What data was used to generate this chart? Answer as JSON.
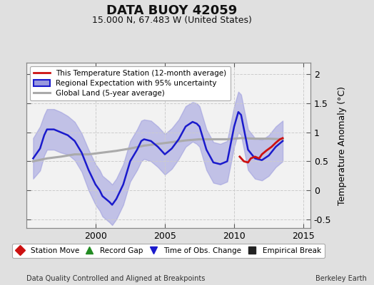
{
  "title": "DATA BUOY 42059",
  "subtitle": "15.000 N, 67.483 W (United States)",
  "ylabel": "Temperature Anomaly (°C)",
  "xlabel_bottom_left": "Data Quality Controlled and Aligned at Breakpoints",
  "xlabel_bottom_right": "Berkeley Earth",
  "ylim": [
    -0.65,
    2.2
  ],
  "xlim": [
    1995.0,
    2015.5
  ],
  "yticks": [
    -0.5,
    0.0,
    0.5,
    1.0,
    1.5,
    2.0
  ],
  "xticks": [
    2000,
    2005,
    2010,
    2015
  ],
  "bg_color": "#e0e0e0",
  "plot_bg_color": "#f2f2f2",
  "grid_color": "#cccccc",
  "blue_line_color": "#1a1acc",
  "blue_fill_color": "#9999dd",
  "red_line_color": "#cc1111",
  "gray_line_color": "#aaaaaa",
  "legend1_labels": [
    "This Temperature Station (12-month average)",
    "Regional Expectation with 95% uncertainty",
    "Global Land (5-year average)"
  ],
  "legend2_entries": [
    {
      "label": "Station Move",
      "color": "#cc1111",
      "marker": "D"
    },
    {
      "label": "Record Gap",
      "color": "#228B22",
      "marker": "^"
    },
    {
      "label": "Time of Obs. Change",
      "color": "#1a1acc",
      "marker": "v"
    },
    {
      "label": "Empirical Break",
      "color": "#222222",
      "marker": "s"
    }
  ],
  "blue_x": [
    1995.5,
    1996.0,
    1996.3,
    1996.5,
    1997.0,
    1997.5,
    1998.0,
    1998.5,
    1999.0,
    1999.5,
    2000.0,
    2000.3,
    2000.5,
    2001.0,
    2001.2,
    2001.5,
    2002.0,
    2002.5,
    2003.0,
    2003.3,
    2003.5,
    2004.0,
    2004.5,
    2005.0,
    2005.5,
    2006.0,
    2006.5,
    2007.0,
    2007.3,
    2007.5,
    2008.0,
    2008.5,
    2009.0,
    2009.5,
    2010.0,
    2010.3,
    2010.5,
    2011.0,
    2011.5,
    2012.0,
    2012.5,
    2013.0,
    2013.5
  ],
  "blue_y": [
    0.55,
    0.72,
    0.95,
    1.05,
    1.05,
    1.0,
    0.95,
    0.85,
    0.65,
    0.35,
    0.1,
    0.0,
    -0.1,
    -0.2,
    -0.25,
    -0.15,
    0.1,
    0.5,
    0.7,
    0.85,
    0.88,
    0.85,
    0.75,
    0.62,
    0.72,
    0.88,
    1.1,
    1.18,
    1.15,
    1.1,
    0.7,
    0.48,
    0.45,
    0.5,
    1.1,
    1.35,
    1.3,
    0.7,
    0.55,
    0.52,
    0.6,
    0.75,
    0.85
  ],
  "blue_upper": [
    0.9,
    1.1,
    1.3,
    1.4,
    1.4,
    1.35,
    1.28,
    1.18,
    0.98,
    0.7,
    0.45,
    0.35,
    0.25,
    0.15,
    0.1,
    0.2,
    0.45,
    0.85,
    1.05,
    1.2,
    1.22,
    1.2,
    1.1,
    0.97,
    1.07,
    1.22,
    1.45,
    1.52,
    1.5,
    1.45,
    1.05,
    0.83,
    0.8,
    0.85,
    1.45,
    1.7,
    1.65,
    1.05,
    0.9,
    0.87,
    0.95,
    1.1,
    1.2
  ],
  "blue_lower": [
    0.2,
    0.34,
    0.6,
    0.7,
    0.7,
    0.65,
    0.62,
    0.52,
    0.32,
    0.0,
    -0.25,
    -0.35,
    -0.45,
    -0.55,
    -0.6,
    -0.5,
    -0.25,
    0.15,
    0.35,
    0.5,
    0.54,
    0.5,
    0.4,
    0.27,
    0.37,
    0.54,
    0.75,
    0.84,
    0.8,
    0.75,
    0.35,
    0.13,
    0.1,
    0.15,
    0.75,
    1.0,
    0.95,
    0.35,
    0.2,
    0.17,
    0.25,
    0.4,
    0.5
  ],
  "gray_x": [
    1995.5,
    1996.5,
    1997.5,
    1998.5,
    1999.5,
    2000.5,
    2001.5,
    2002.5,
    2003.5,
    2004.5,
    2005.5,
    2006.5,
    2007.5,
    2008.5,
    2009.5,
    2010.5,
    2011.5,
    2012.5,
    2013.5
  ],
  "gray_y": [
    0.5,
    0.55,
    0.58,
    0.62,
    0.62,
    0.65,
    0.68,
    0.72,
    0.77,
    0.8,
    0.83,
    0.86,
    0.88,
    0.88,
    0.88,
    0.9,
    0.89,
    0.89,
    0.88
  ],
  "red_x": [
    2010.4,
    2010.7,
    2011.0,
    2011.2,
    2011.5,
    2011.8,
    2012.0,
    2012.3,
    2012.7,
    2013.0,
    2013.3,
    2013.5
  ],
  "red_y": [
    0.58,
    0.5,
    0.48,
    0.55,
    0.58,
    0.55,
    0.62,
    0.68,
    0.75,
    0.82,
    0.88,
    0.9
  ]
}
